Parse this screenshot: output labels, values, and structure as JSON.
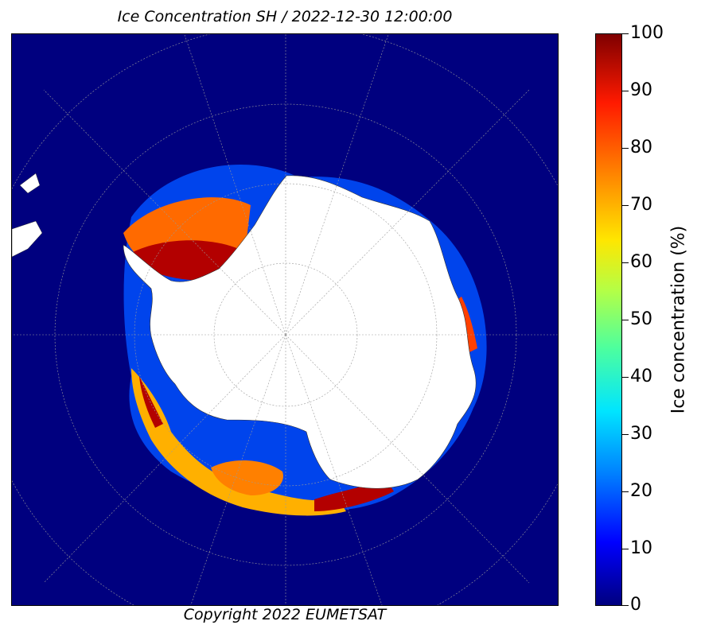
{
  "title": "Ice Concentration SH / 2022-12-30 12:00:00",
  "copyright": "Copyright 2022 EUMETSAT",
  "colorbar": {
    "label": "Ice concentration (%)",
    "ticks": [
      "100",
      "90",
      "80",
      "70",
      "60",
      "50",
      "40",
      "30",
      "20",
      "10",
      "0"
    ],
    "colormap": [
      "#00007f",
      "#0000ff",
      "#0080ff",
      "#00e5ff",
      "#4dff9e",
      "#b3ff47",
      "#ffe600",
      "#ff8000",
      "#ff1a00",
      "#7f0000"
    ]
  },
  "map": {
    "projection": "polar-stereographic",
    "hemisphere": "south",
    "ocean_color": "#00007f",
    "land_color": "#ffffff",
    "graticule": true
  }
}
